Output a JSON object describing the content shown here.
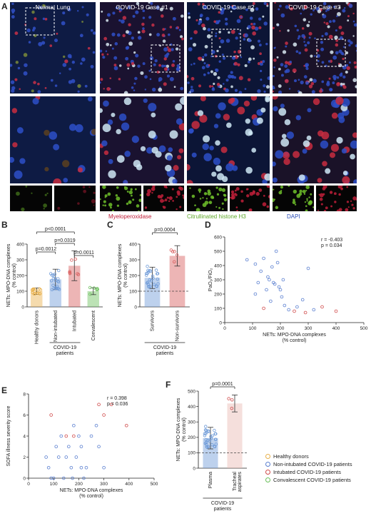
{
  "panel_a": {
    "letter": "A",
    "columns": [
      {
        "label": "Normal Lung",
        "bg": "#0e1b44"
      },
      {
        "label": "COVID-19 Case #1",
        "bg": "#1a1230"
      },
      {
        "label": "COVID-19 Case #2",
        "bg": "#0c1536"
      },
      {
        "label": "COVID-19 Case #3",
        "bg": "#1a1228"
      }
    ],
    "stains": [
      {
        "label": "Myeloperoxidase",
        "color": "#c0203a"
      },
      {
        "label": "Citrullinated histone H3",
        "color": "#6fbf2a"
      },
      {
        "label": "DAPI",
        "color": "#2a4db8"
      }
    ]
  },
  "panel_b": {
    "letter": "B",
    "chart_data": {
      "type": "bar",
      "ylabel": "NETs: MPO-DNA complexes\n(% control)",
      "ylim": [
        0,
        400
      ],
      "yticks": [
        0,
        100,
        200,
        300,
        400
      ],
      "categories": [
        "Healthy donors",
        "Non-intubated",
        "Intubated",
        "Convalescent"
      ],
      "values": [
        100,
        175,
        262,
        100
      ],
      "errors": [
        20,
        65,
        95,
        22
      ],
      "colors": [
        "#e8b04a",
        "#6d9ad8",
        "#d85a5a",
        "#6abf5a"
      ],
      "pvalues": [
        {
          "label": "p<0.0001",
          "from": 0,
          "to": 2
        },
        {
          "label": "p=0.0319",
          "from": 1,
          "to": 2
        },
        {
          "label": "p=0.0012",
          "from": 0,
          "to": 1
        },
        {
          "label": "p=0.0011",
          "from": 2,
          "to": 3
        }
      ],
      "group_label": "COVID-19\npatients"
    }
  },
  "panel_c": {
    "letter": "C",
    "chart_data": {
      "type": "bar",
      "ylabel": "NETs: MPO-DNA complexes\n(% control)",
      "ylim": [
        0,
        400
      ],
      "yticks": [
        0,
        100,
        200,
        300,
        400
      ],
      "categories": [
        "Survivors",
        "Non-survivors"
      ],
      "values": [
        185,
        325
      ],
      "errors": [
        68,
        65
      ],
      "colors": [
        "#6d9ad8",
        "#d85a5a"
      ],
      "pvalues": [
        {
          "label": "p=0.0004",
          "from": 0,
          "to": 1
        }
      ],
      "reference_line": 100,
      "group_label": "COVID-19\npatients"
    }
  },
  "panel_d": {
    "letter": "D",
    "chart_data": {
      "type": "scatter",
      "xlabel": "NETs: MPO-DNA complexes\n(% control)",
      "ylabel": "PaO₂/FiO₂",
      "xlim": [
        0,
        500
      ],
      "ylim": [
        0,
        600
      ],
      "xticks": [
        0,
        100,
        200,
        300,
        400,
        500
      ],
      "yticks": [
        0,
        100,
        200,
        300,
        400,
        500,
        600
      ],
      "annotation": [
        "r = -0.403",
        "p = 0.034"
      ],
      "series": [
        {
          "color": "#5a7fd0",
          "points": [
            [
              80,
              440
            ],
            [
              110,
              410
            ],
            [
              120,
              280
            ],
            [
              130,
              360
            ],
            [
              140,
              450
            ],
            [
              150,
              230
            ],
            [
              155,
              320
            ],
            [
              160,
              300
            ],
            [
              165,
              150
            ],
            [
              170,
              390
            ],
            [
              175,
              280
            ],
            [
              180,
              270
            ],
            [
              185,
              500
            ],
            [
              190,
              420
            ],
            [
              195,
              250
            ],
            [
              200,
              230
            ],
            [
              205,
              180
            ],
            [
              210,
              300
            ],
            [
              215,
              120
            ],
            [
              230,
              90
            ],
            [
              260,
              110
            ],
            [
              280,
              160
            ],
            [
              300,
              380
            ],
            [
              320,
              90
            ],
            [
              110,
              200
            ]
          ]
        },
        {
          "color": "#d04a4a",
          "points": [
            [
              140,
              100
            ],
            [
              250,
              80
            ],
            [
              290,
              70
            ],
            [
              350,
              110
            ],
            [
              400,
              80
            ]
          ]
        }
      ]
    }
  },
  "panel_e": {
    "letter": "E",
    "chart_data": {
      "type": "scatter",
      "xlabel": "NETs: MPO-DNA complexes\n(% control)",
      "ylabel": "SOFA illness severity score",
      "xlim": [
        0,
        500
      ],
      "ylim": [
        0,
        8
      ],
      "xticks": [
        0,
        100,
        200,
        300,
        400,
        500
      ],
      "yticks": [
        0,
        2,
        4,
        6,
        8
      ],
      "annotation": [
        "r = 0.398",
        "p = 0.036"
      ],
      "series": [
        {
          "color": "#5a7fd0",
          "points": [
            [
              70,
              2
            ],
            [
              80,
              1
            ],
            [
              90,
              0
            ],
            [
              100,
              0
            ],
            [
              110,
              3
            ],
            [
              120,
              2
            ],
            [
              130,
              4
            ],
            [
              140,
              0
            ],
            [
              150,
              2
            ],
            [
              160,
              3
            ],
            [
              170,
              1
            ],
            [
              175,
              0
            ],
            [
              180,
              5
            ],
            [
              190,
              2
            ],
            [
              200,
              4
            ],
            [
              210,
              3
            ],
            [
              220,
              0
            ],
            [
              230,
              1
            ],
            [
              250,
              4
            ],
            [
              270,
              5
            ],
            [
              280,
              3
            ],
            [
              300,
              1
            ],
            [
              210,
              1
            ]
          ]
        },
        {
          "color": "#d04a4a",
          "points": [
            [
              90,
              6
            ],
            [
              150,
              4
            ],
            [
              180,
              4
            ],
            [
              280,
              7
            ],
            [
              300,
              6
            ],
            [
              390,
              5
            ],
            [
              330,
              7
            ]
          ]
        }
      ]
    }
  },
  "panel_f": {
    "letter": "F",
    "chart_data": {
      "type": "bar",
      "ylabel": "NETs: MPO-DNA complexes\n(% control)",
      "ylim": [
        0,
        500
      ],
      "yticks": [
        0,
        100,
        200,
        300,
        400,
        500
      ],
      "categories": [
        "Plasma",
        "Tracheal\naspirates"
      ],
      "values": [
        195,
        420
      ],
      "errors": [
        70,
        55
      ],
      "colors": [
        "#6d9ad8",
        "#e9b7b2"
      ],
      "pvalues": [
        {
          "label": "p=0.0001",
          "from": 0,
          "to": 1
        }
      ],
      "reference_line": 100,
      "group_label": "COVID-19\npatients"
    }
  },
  "legend": {
    "items": [
      {
        "label": "Healthy donors",
        "color": "#e8b04a"
      },
      {
        "label": "Non-intubated COVID-19 patients",
        "color": "#5a7fd0"
      },
      {
        "label": "Intubated COVID-19 patients",
        "color": "#d04a4a"
      },
      {
        "label": "Convalescent COVID-19 patients",
        "color": "#6abf5a"
      }
    ]
  }
}
